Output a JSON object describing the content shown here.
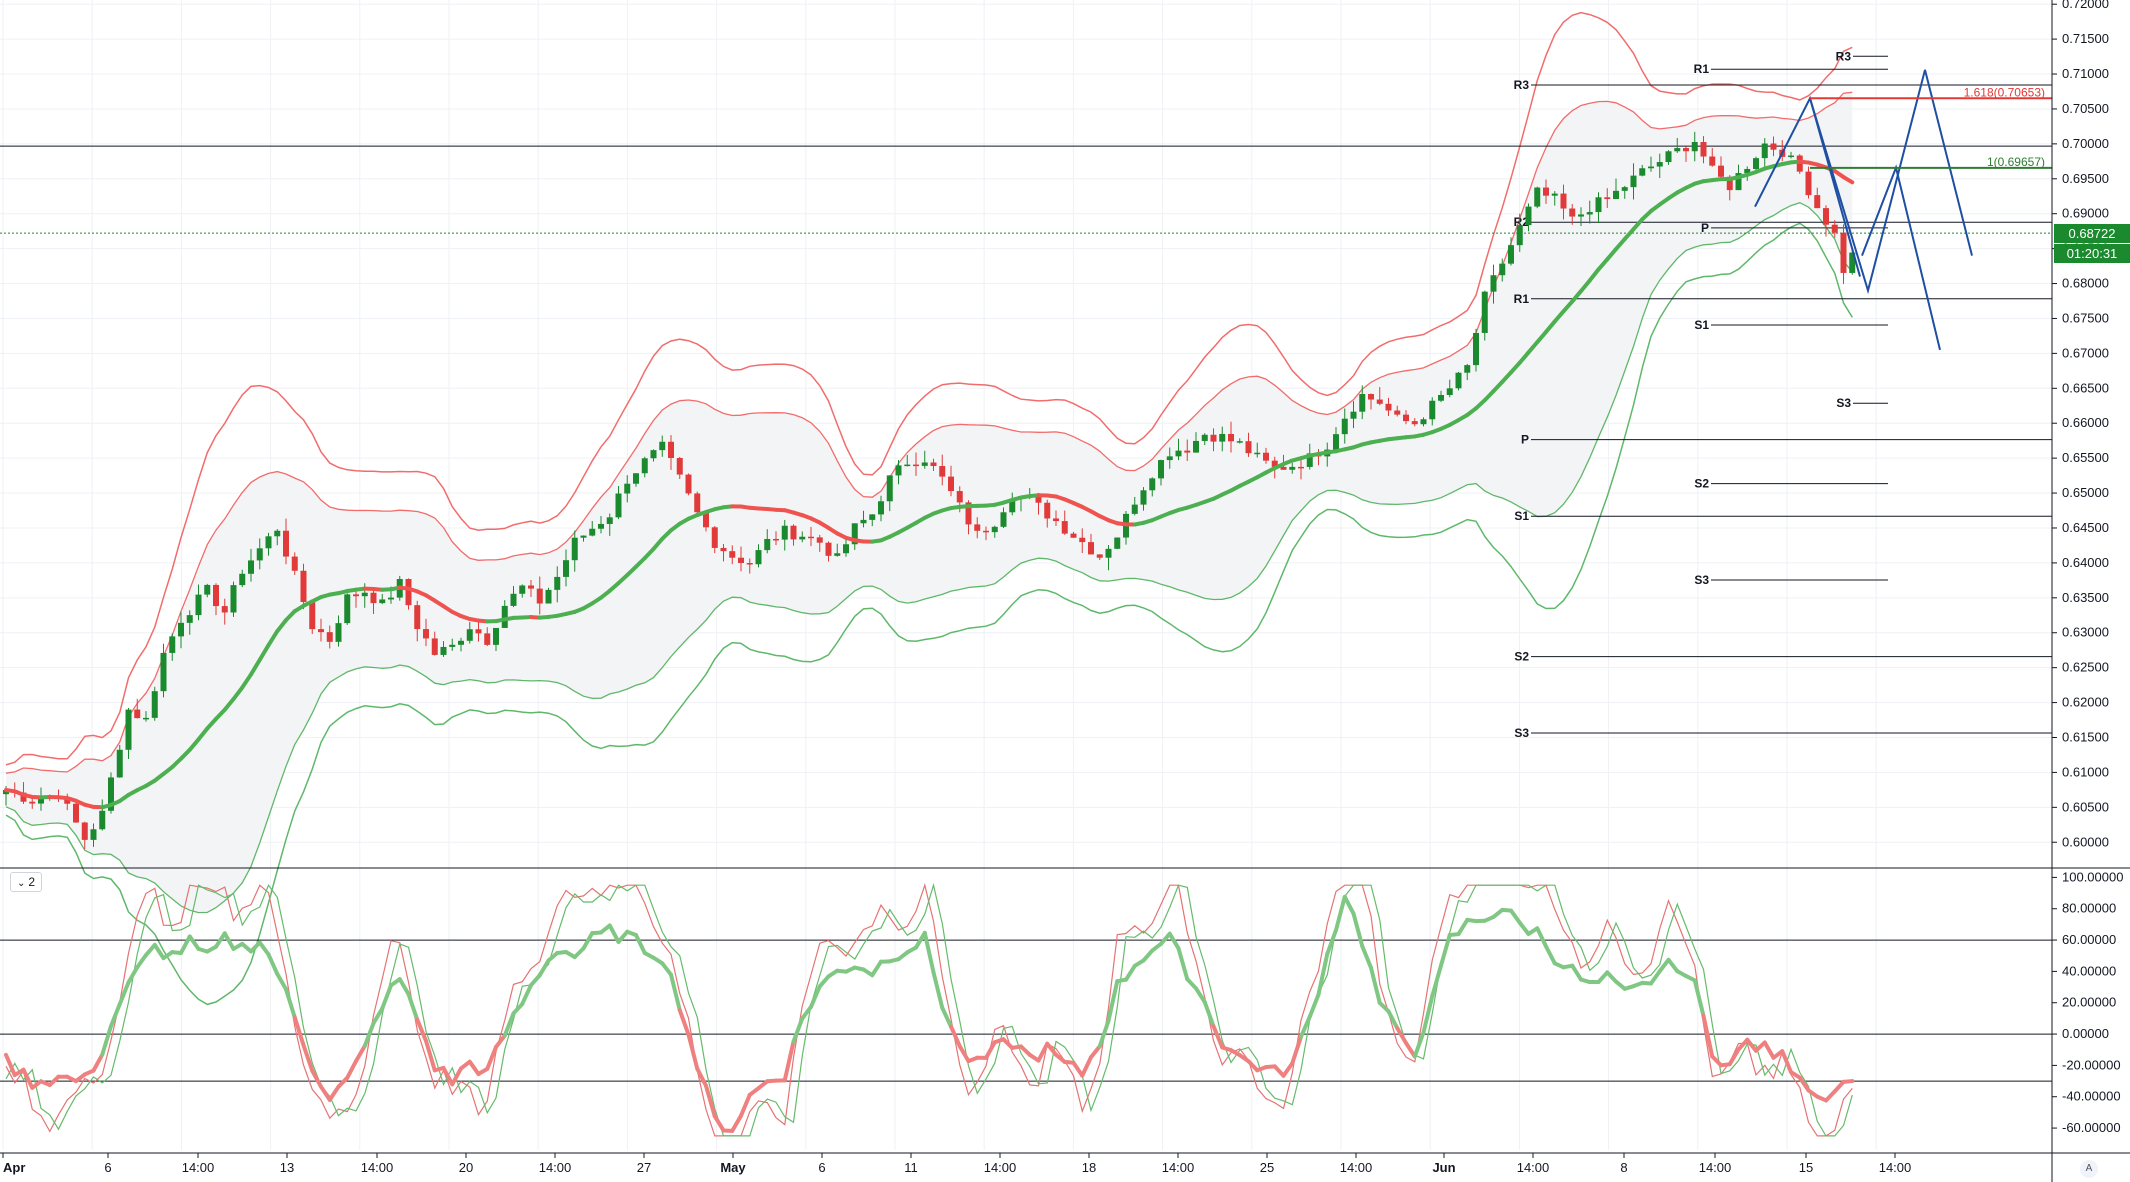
{
  "chart_data": {
    "type": "candlestick",
    "price_axis": {
      "ticks": [
        "0.72000",
        "0.71500",
        "0.71000",
        "0.70500",
        "0.70000",
        "0.69500",
        "0.69000",
        "0.68500",
        "0.68000",
        "0.67500",
        "0.67000",
        "0.66500",
        "0.66000",
        "0.65500",
        "0.65000",
        "0.64500",
        "0.64000",
        "0.63500",
        "0.63000",
        "0.62500",
        "0.62000",
        "0.61500",
        "0.61000",
        "0.60500",
        "0.60000"
      ],
      "range": [
        0.5966,
        0.7206
      ]
    },
    "oscillator_axis": {
      "ticks": [
        "100.00000",
        "80.00000",
        "60.00000",
        "40.00000",
        "20.00000",
        "0.00000",
        "-20.00000",
        "-40.00000",
        "-60.00000"
      ],
      "range": [
        -74,
        106
      ]
    },
    "time_axis": {
      "labels": [
        "Apr",
        "6",
        "14:00",
        "13",
        "14:00",
        "20",
        "14:00",
        "27",
        "May",
        "6",
        "11",
        "14:00",
        "18",
        "14:00",
        "25",
        "14:00",
        "Jun",
        "14:00",
        "8",
        "14:00",
        "15",
        "14:00"
      ],
      "bold": [
        "Apr",
        "May",
        "Jun"
      ]
    },
    "last_price": "0.68722",
    "countdown": "01:20:31",
    "oscillator_toggle": "2",
    "auto_button": "A",
    "colors": {
      "up": "#1b8a2e",
      "down": "#e03a3a",
      "band_red": "#f26c6c",
      "band_green": "#5fb86a",
      "pivot": "#131722",
      "projection": "#1e4fa3"
    },
    "fib_levels": [
      {
        "label": "1.618(0.70653)",
        "price": 0.70653,
        "color": "#e53935"
      },
      {
        "label": "1(0.69657)",
        "price": 0.69657,
        "color": "#2e7d32"
      }
    ],
    "horizontal_lines": [
      {
        "price": 0.69967,
        "style": "solid"
      },
      {
        "price": 0.68722,
        "style": "dotted"
      }
    ],
    "pivots_weekly": [
      {
        "label": "R3",
        "price": 0.70843
      },
      {
        "label": "R2",
        "price": 0.68878
      },
      {
        "label": "R1",
        "price": 0.67782
      },
      {
        "label": "P",
        "price": 0.65765
      },
      {
        "label": "S1",
        "price": 0.64668
      },
      {
        "label": "S2",
        "price": 0.62658
      },
      {
        "label": "S3",
        "price": 0.61565
      }
    ],
    "pivots_daily": [
      {
        "label": "R1",
        "price": 0.71069
      },
      {
        "label": "P",
        "price": 0.68797
      },
      {
        "label": "S1",
        "price": 0.67407
      },
      {
        "label": "S2",
        "price": 0.65136
      },
      {
        "label": "S3",
        "price": 0.63755
      }
    ],
    "pivots_minor": [
      {
        "label": "R3",
        "price": 0.71254
      },
      {
        "label": "S3",
        "price": 0.66286
      }
    ],
    "close_path": [
      [
        0,
        0.6075
      ],
      [
        3,
        0.606
      ],
      [
        6,
        0.607
      ],
      [
        9,
        0.6005
      ],
      [
        11,
        0.604
      ],
      [
        14,
        0.619
      ],
      [
        16,
        0.6175
      ],
      [
        18,
        0.627
      ],
      [
        20,
        0.632
      ],
      [
        23,
        0.636
      ],
      [
        25,
        0.633
      ],
      [
        27,
        0.639
      ],
      [
        29,
        0.642
      ],
      [
        31,
        0.645
      ],
      [
        33,
        0.638
      ],
      [
        35,
        0.631
      ],
      [
        37,
        0.629
      ],
      [
        39,
        0.635
      ],
      [
        41,
        0.636
      ],
      [
        43,
        0.634
      ],
      [
        45,
        0.637
      ],
      [
        47,
        0.631
      ],
      [
        49,
        0.627
      ],
      [
        51,
        0.628
      ],
      [
        53,
        0.631
      ],
      [
        55,
        0.629
      ],
      [
        57,
        0.634
      ],
      [
        59,
        0.6365
      ],
      [
        61,
        0.6345
      ],
      [
        63,
        0.638
      ],
      [
        65,
        0.643
      ],
      [
        67,
        0.645
      ],
      [
        69,
        0.647
      ],
      [
        71,
        0.652
      ],
      [
        73,
        0.6545
      ],
      [
        75,
        0.6565
      ],
      [
        77,
        0.652
      ],
      [
        79,
        0.647
      ],
      [
        81,
        0.643
      ],
      [
        83,
        0.641
      ],
      [
        85,
        0.64
      ],
      [
        87,
        0.643
      ],
      [
        89,
        0.6445
      ],
      [
        91,
        0.644
      ],
      [
        93,
        0.643
      ],
      [
        95,
        0.6405
      ],
      [
        97,
        0.645
      ],
      [
        99,
        0.647
      ],
      [
        101,
        0.652
      ],
      [
        103,
        0.6545
      ],
      [
        105,
        0.655
      ],
      [
        107,
        0.652
      ],
      [
        109,
        0.648
      ],
      [
        111,
        0.644
      ],
      [
        113,
        0.646
      ],
      [
        115,
        0.65
      ],
      [
        117,
        0.649
      ],
      [
        119,
        0.647
      ],
      [
        121,
        0.645
      ],
      [
        123,
        0.643
      ],
      [
        125,
        0.641
      ],
      [
        127,
        0.644
      ],
      [
        129,
        0.649
      ],
      [
        131,
        0.653
      ],
      [
        133,
        0.656
      ],
      [
        135,
        0.6565
      ],
      [
        137,
        0.6585
      ],
      [
        139,
        0.658
      ],
      [
        141,
        0.657
      ],
      [
        143,
        0.655
      ],
      [
        145,
        0.6535
      ],
      [
        147,
        0.654
      ],
      [
        149,
        0.655
      ],
      [
        151,
        0.657
      ],
      [
        153,
        0.661
      ],
      [
        155,
        0.664
      ],
      [
        157,
        0.663
      ],
      [
        159,
        0.6605
      ],
      [
        161,
        0.66
      ],
      [
        163,
        0.6625
      ],
      [
        165,
        0.665
      ],
      [
        167,
        0.668
      ],
      [
        169,
        0.678
      ],
      [
        171,
        0.683
      ],
      [
        173,
        0.688
      ],
      [
        175,
        0.693
      ],
      [
        177,
        0.692
      ],
      [
        179,
        0.689
      ],
      [
        181,
        0.691
      ],
      [
        183,
        0.692
      ],
      [
        185,
        0.694
      ],
      [
        187,
        0.696
      ],
      [
        189,
        0.6975
      ],
      [
        191,
        0.699
      ],
      [
        193,
        0.7005
      ],
      [
        195,
        0.696
      ],
      [
        197,
        0.694
      ],
      [
        199,
        0.697
      ],
      [
        201,
        0.7
      ],
      [
        203,
        0.699
      ],
      [
        205,
        0.696
      ],
      [
        207,
        0.691
      ],
      [
        209,
        0.687
      ],
      [
        210,
        0.682
      ],
      [
        211,
        0.684
      ]
    ],
    "oscillator_path": [
      [
        0,
        -18
      ],
      [
        3,
        -30
      ],
      [
        6,
        -28
      ],
      [
        9,
        -30
      ],
      [
        11,
        -10
      ],
      [
        13,
        20
      ],
      [
        15,
        40
      ],
      [
        17,
        55
      ],
      [
        19,
        50
      ],
      [
        21,
        58
      ],
      [
        23,
        48
      ],
      [
        25,
        60
      ],
      [
        27,
        55
      ],
      [
        29,
        60
      ],
      [
        31,
        40
      ],
      [
        33,
        10
      ],
      [
        35,
        -20
      ],
      [
        37,
        -40
      ],
      [
        39,
        -30
      ],
      [
        41,
        -10
      ],
      [
        43,
        20
      ],
      [
        45,
        35
      ],
      [
        47,
        10
      ],
      [
        49,
        -20
      ],
      [
        51,
        -30
      ],
      [
        53,
        -18
      ],
      [
        55,
        -25
      ],
      [
        57,
        0
      ],
      [
        59,
        20
      ],
      [
        61,
        40
      ],
      [
        63,
        55
      ],
      [
        65,
        50
      ],
      [
        67,
        60
      ],
      [
        69,
        65
      ],
      [
        71,
        62
      ],
      [
        73,
        55
      ],
      [
        75,
        50
      ],
      [
        77,
        20
      ],
      [
        79,
        -20
      ],
      [
        81,
        -55
      ],
      [
        83,
        -60
      ],
      [
        85,
        -40
      ],
      [
        87,
        -30
      ],
      [
        89,
        -25
      ],
      [
        91,
        10
      ],
      [
        93,
        30
      ],
      [
        95,
        40
      ],
      [
        97,
        45
      ],
      [
        99,
        40
      ],
      [
        101,
        50
      ],
      [
        103,
        55
      ],
      [
        105,
        60
      ],
      [
        107,
        20
      ],
      [
        109,
        -10
      ],
      [
        111,
        -20
      ],
      [
        113,
        -10
      ],
      [
        115,
        -5
      ],
      [
        117,
        -15
      ],
      [
        119,
        -10
      ],
      [
        121,
        -20
      ],
      [
        123,
        -25
      ],
      [
        125,
        -5
      ],
      [
        127,
        30
      ],
      [
        129,
        45
      ],
      [
        131,
        55
      ],
      [
        133,
        60
      ],
      [
        135,
        40
      ],
      [
        137,
        20
      ],
      [
        139,
        -5
      ],
      [
        141,
        -15
      ],
      [
        143,
        -20
      ],
      [
        145,
        -25
      ],
      [
        147,
        -20
      ],
      [
        149,
        10
      ],
      [
        151,
        50
      ],
      [
        153,
        90
      ],
      [
        155,
        60
      ],
      [
        157,
        20
      ],
      [
        159,
        0
      ],
      [
        161,
        -10
      ],
      [
        163,
        20
      ],
      [
        165,
        60
      ],
      [
        167,
        70
      ],
      [
        169,
        75
      ],
      [
        171,
        80
      ],
      [
        173,
        70
      ],
      [
        175,
        65
      ],
      [
        177,
        50
      ],
      [
        179,
        40
      ],
      [
        181,
        30
      ],
      [
        183,
        35
      ],
      [
        185,
        25
      ],
      [
        187,
        30
      ],
      [
        189,
        40
      ],
      [
        191,
        45
      ],
      [
        193,
        30
      ],
      [
        195,
        -10
      ],
      [
        197,
        -20
      ],
      [
        199,
        -5
      ],
      [
        201,
        -10
      ],
      [
        203,
        -15
      ],
      [
        205,
        -25
      ],
      [
        207,
        -40
      ],
      [
        209,
        -35
      ],
      [
        211,
        -30
      ]
    ]
  }
}
